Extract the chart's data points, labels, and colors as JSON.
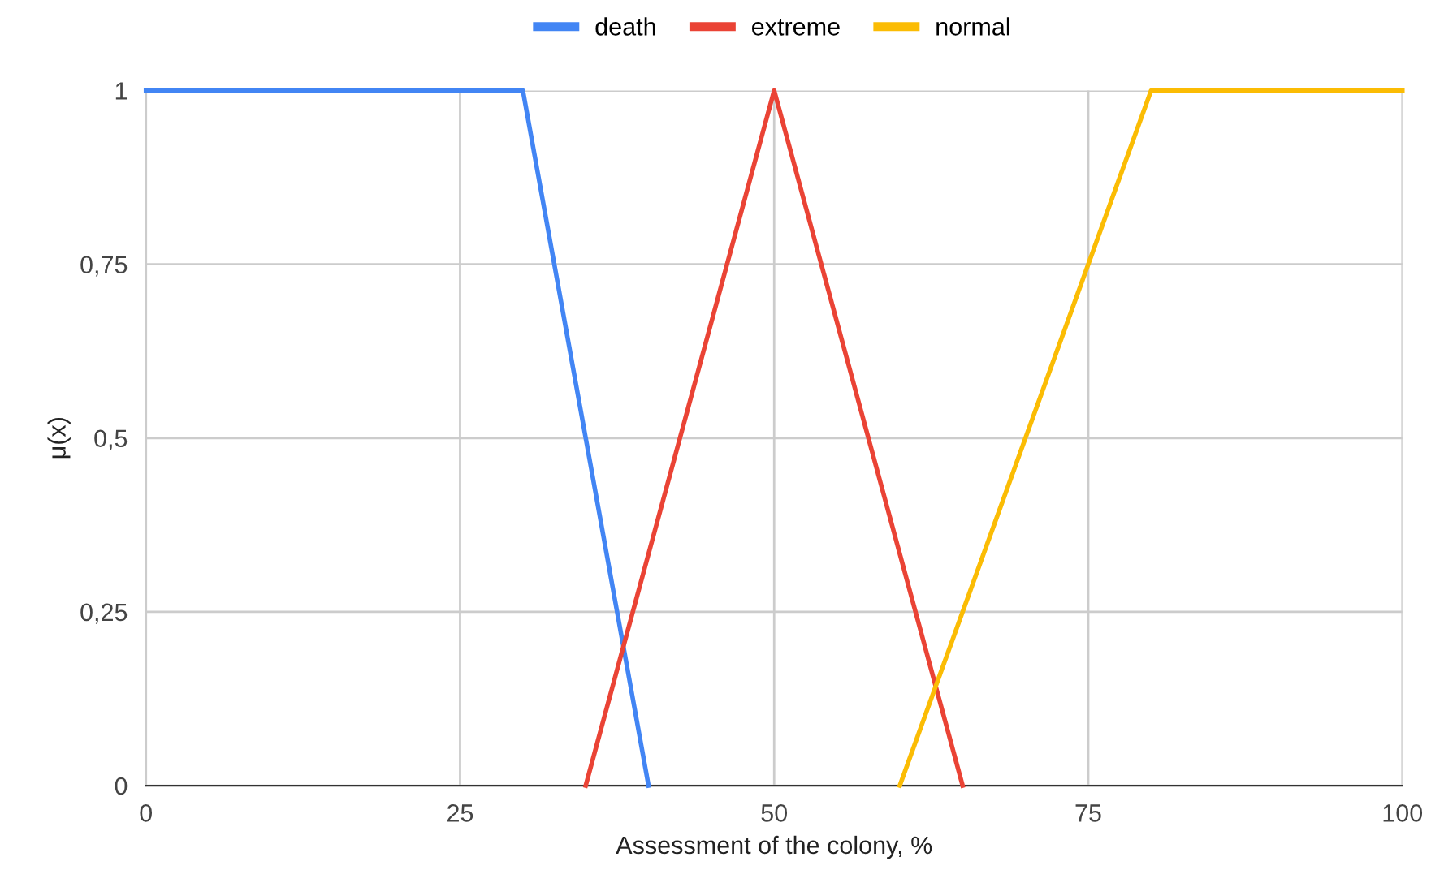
{
  "chart_data": {
    "type": "line",
    "xlabel": "Assessment of the colony, %",
    "ylabel": "μ(x)",
    "series": [
      {
        "name": "death",
        "color": "#4285f4",
        "x": [
          0,
          30,
          40
        ],
        "values": [
          1,
          1,
          0
        ]
      },
      {
        "name": "extreme",
        "color": "#ea4335",
        "x": [
          35,
          50,
          65
        ],
        "values": [
          0,
          1,
          0
        ]
      },
      {
        "name": "normal",
        "color": "#fbbc04",
        "x": [
          60,
          80,
          100
        ],
        "values": [
          0,
          1,
          1
        ]
      }
    ],
    "xlim": [
      0,
      100
    ],
    "xticks": [
      0,
      25,
      50,
      75,
      100
    ],
    "ylim": [
      0,
      1
    ],
    "yticks": [
      0,
      {
        "value": 0.25,
        "label": "0,25"
      },
      {
        "value": 0.5,
        "label": "0,5"
      },
      {
        "value": 0.75,
        "label": "0,75"
      },
      1
    ],
    "grid": true,
    "legend": "top",
    "marker": "none",
    "line_style": "solid"
  }
}
